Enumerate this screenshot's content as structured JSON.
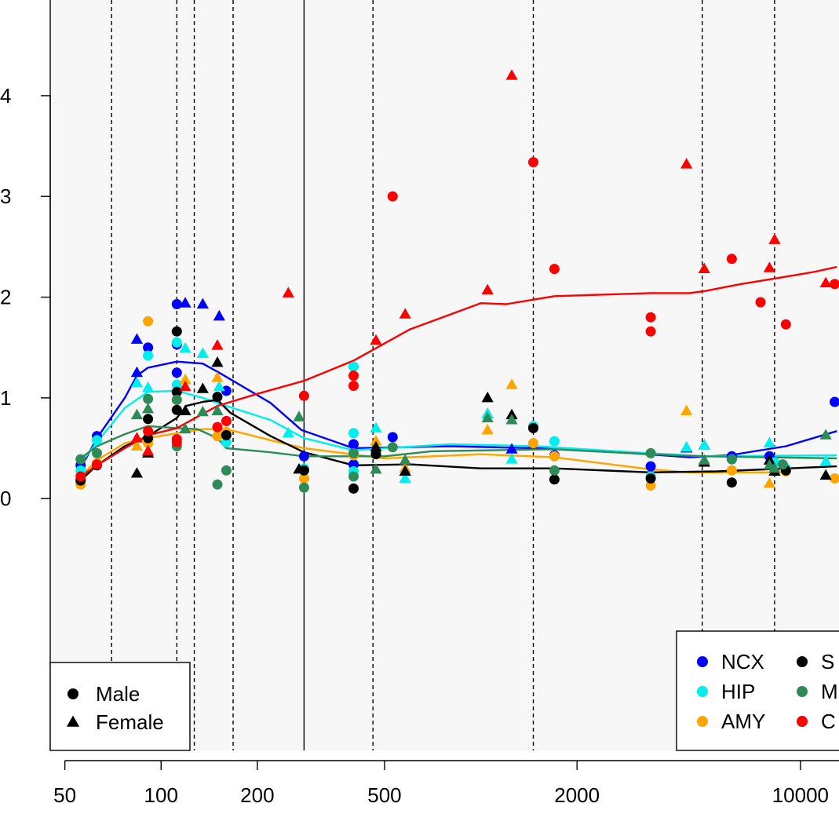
{
  "chart_data": {
    "type": "scatter",
    "x_scale": "log",
    "x_ticks": [
      50,
      100,
      200,
      500,
      2000,
      10000
    ],
    "x_tick_labels": [
      "50",
      "100",
      "200",
      "500",
      "2000",
      "10000"
    ],
    "y_ticks": [
      0,
      1,
      2,
      3,
      4
    ],
    "y_tick_labels": [
      "0",
      "1",
      "2",
      "3",
      "4"
    ],
    "xlim": [
      45,
      13200
    ],
    "ylim": [
      -2.5,
      4.95
    ],
    "grid": false,
    "legend_sex_location": "bottom-left",
    "legend_region_location": "bottom-right",
    "shape_legend": [
      {
        "label": "Male",
        "shape": "circle"
      },
      {
        "label": "Female",
        "shape": "triangle"
      }
    ],
    "region_legend": [
      {
        "label": "NCX",
        "color": "#0000ff"
      },
      {
        "label": "S",
        "color": "#000000"
      },
      {
        "label": "HIP",
        "color": "#00eeee"
      },
      {
        "label": "M",
        "color": "#2e8b57"
      },
      {
        "label": "AMY",
        "color": "#ffa500"
      },
      {
        "label": "C",
        "color": "#ff0000"
      }
    ],
    "vlines_dashed": [
      70,
      112,
      127,
      168,
      460,
      1460,
      4930,
      8300
    ],
    "vline_solid": 280,
    "series": [
      {
        "color": "#0000ff",
        "fit": [
          [
            56,
            0.3
          ],
          [
            63,
            0.6
          ],
          [
            77,
            1.0
          ],
          [
            84,
            1.22
          ],
          [
            91,
            1.3
          ],
          [
            112,
            1.36
          ],
          [
            135,
            1.34
          ],
          [
            152,
            1.25
          ],
          [
            220,
            0.95
          ],
          [
            275,
            0.68
          ],
          [
            400,
            0.5
          ],
          [
            800,
            0.52
          ],
          [
            1500,
            0.5
          ],
          [
            3000,
            0.45
          ],
          [
            4500,
            0.41
          ],
          [
            6000,
            0.43
          ],
          [
            9000,
            0.52
          ],
          [
            13000,
            0.67
          ]
        ],
        "male": [
          [
            56,
            0.33
          ],
          [
            63,
            0.62
          ],
          [
            91,
            1.5
          ],
          [
            112,
            1.25
          ],
          [
            112,
            1.93
          ],
          [
            112,
            1.53
          ],
          [
            160,
            1.07
          ],
          [
            280,
            0.42
          ],
          [
            400,
            0.54
          ],
          [
            400,
            0.34
          ],
          [
            530,
            0.61
          ],
          [
            1700,
            0.43
          ],
          [
            3400,
            0.32
          ],
          [
            6100,
            0.42
          ],
          [
            8000,
            0.42
          ],
          [
            12800,
            0.96
          ]
        ],
        "female": [
          [
            84,
            1.58
          ],
          [
            84,
            1.25
          ],
          [
            119,
            1.94
          ],
          [
            135,
            1.93
          ],
          [
            152,
            1.81
          ],
          [
            1050,
            0.84
          ],
          [
            1250,
            0.49
          ],
          [
            4400,
            0.5
          ],
          [
            5000,
            0.53
          ]
        ]
      },
      {
        "color": "#00eeee",
        "fit": [
          [
            56,
            0.35
          ],
          [
            63,
            0.56
          ],
          [
            77,
            0.9
          ],
          [
            91,
            1.06
          ],
          [
            112,
            1.07
          ],
          [
            135,
            1.0
          ],
          [
            160,
            0.92
          ],
          [
            220,
            0.78
          ],
          [
            280,
            0.6
          ],
          [
            400,
            0.48
          ],
          [
            800,
            0.54
          ],
          [
            1500,
            0.52
          ],
          [
            3000,
            0.46
          ],
          [
            5000,
            0.42
          ],
          [
            13000,
            0.43
          ]
        ],
        "male": [
          [
            56,
            0.28
          ],
          [
            63,
            0.58
          ],
          [
            91,
            1.42
          ],
          [
            112,
            1.13
          ],
          [
            112,
            1.55
          ],
          [
            160,
            0.56
          ],
          [
            280,
            0.3
          ],
          [
            400,
            1.31
          ],
          [
            400,
            0.65
          ],
          [
            400,
            0.27
          ],
          [
            1460,
            0.72
          ],
          [
            1700,
            0.57
          ],
          [
            3400,
            0.22
          ],
          [
            6100,
            0.39
          ],
          [
            8300,
            0.36
          ],
          [
            9000,
            0.3
          ]
        ],
        "female": [
          [
            84,
            1.15
          ],
          [
            91,
            1.1
          ],
          [
            119,
            1.49
          ],
          [
            135,
            1.44
          ],
          [
            152,
            1.11
          ],
          [
            250,
            0.65
          ],
          [
            470,
            0.7
          ],
          [
            580,
            0.2
          ],
          [
            1050,
            0.84
          ],
          [
            1250,
            0.39
          ],
          [
            4400,
            0.51
          ],
          [
            5000,
            0.53
          ],
          [
            8000,
            0.55
          ],
          [
            12000,
            0.37
          ]
        ]
      },
      {
        "color": "#ffa500",
        "fit": [
          [
            56,
            0.22
          ],
          [
            63,
            0.38
          ],
          [
            77,
            0.55
          ],
          [
            91,
            0.6
          ],
          [
            112,
            0.65
          ],
          [
            135,
            0.69
          ],
          [
            160,
            0.69
          ],
          [
            220,
            0.58
          ],
          [
            280,
            0.5
          ],
          [
            500,
            0.4
          ],
          [
            1000,
            0.44
          ],
          [
            1700,
            0.41
          ],
          [
            3400,
            0.29
          ],
          [
            4500,
            0.26
          ],
          [
            9000,
            0.26
          ]
        ],
        "male": [
          [
            56,
            0.14
          ],
          [
            63,
            0.35
          ],
          [
            91,
            1.76
          ],
          [
            91,
            0.55
          ],
          [
            112,
            0.88
          ],
          [
            150,
            0.62
          ],
          [
            160,
            0.66
          ],
          [
            280,
            0.2
          ],
          [
            400,
            0.43
          ],
          [
            1460,
            0.55
          ],
          [
            1700,
            0.42
          ],
          [
            3400,
            0.13
          ],
          [
            6100,
            0.28
          ],
          [
            9000,
            0.27
          ],
          [
            12800,
            0.2
          ]
        ],
        "female": [
          [
            84,
            0.52
          ],
          [
            91,
            0.62
          ],
          [
            119,
            1.18
          ],
          [
            150,
            1.2
          ],
          [
            150,
            0.65
          ],
          [
            470,
            0.57
          ],
          [
            580,
            0.3
          ],
          [
            1050,
            0.68
          ],
          [
            1250,
            1.13
          ],
          [
            4400,
            0.87
          ],
          [
            8000,
            0.15
          ]
        ]
      },
      {
        "color": "#000000",
        "fit": [
          [
            56,
            0.18
          ],
          [
            63,
            0.33
          ],
          [
            77,
            0.52
          ],
          [
            91,
            0.62
          ],
          [
            112,
            0.8
          ],
          [
            120,
            0.92
          ],
          [
            135,
            0.96
          ],
          [
            150,
            0.98
          ],
          [
            165,
            0.85
          ],
          [
            220,
            0.62
          ],
          [
            280,
            0.46
          ],
          [
            400,
            0.33
          ],
          [
            600,
            0.34
          ],
          [
            1000,
            0.3
          ],
          [
            1700,
            0.3
          ],
          [
            3400,
            0.26
          ],
          [
            5500,
            0.27
          ],
          [
            13000,
            0.32
          ]
        ],
        "male": [
          [
            56,
            0.18
          ],
          [
            63,
            0.33
          ],
          [
            91,
            0.79
          ],
          [
            91,
            0.6
          ],
          [
            112,
            1.66
          ],
          [
            112,
            1.06
          ],
          [
            112,
            0.88
          ],
          [
            150,
            1.01
          ],
          [
            160,
            0.63
          ],
          [
            280,
            0.28
          ],
          [
            400,
            0.1
          ],
          [
            470,
            0.44
          ],
          [
            1460,
            0.7
          ],
          [
            1700,
            0.19
          ],
          [
            3400,
            0.2
          ],
          [
            6100,
            0.16
          ],
          [
            9000,
            0.28
          ]
        ],
        "female": [
          [
            84,
            0.25
          ],
          [
            91,
            0.45
          ],
          [
            119,
            0.87
          ],
          [
            135,
            1.09
          ],
          [
            150,
            1.35
          ],
          [
            270,
            0.29
          ],
          [
            470,
            0.51
          ],
          [
            580,
            0.27
          ],
          [
            1050,
            1.0
          ],
          [
            1250,
            0.83
          ],
          [
            5000,
            0.36
          ],
          [
            8000,
            0.38
          ],
          [
            8300,
            0.27
          ],
          [
            12000,
            0.23
          ]
        ]
      },
      {
        "color": "#2e8b57",
        "fit": [
          [
            56,
            0.4
          ],
          [
            63,
            0.52
          ],
          [
            77,
            0.64
          ],
          [
            91,
            0.72
          ],
          [
            112,
            0.7
          ],
          [
            130,
            0.69
          ],
          [
            150,
            0.6
          ],
          [
            160,
            0.5
          ],
          [
            220,
            0.46
          ],
          [
            280,
            0.42
          ],
          [
            500,
            0.42
          ],
          [
            700,
            0.47
          ],
          [
            1700,
            0.49
          ],
          [
            3400,
            0.44
          ],
          [
            5000,
            0.42
          ],
          [
            13000,
            0.4
          ]
        ],
        "male": [
          [
            56,
            0.39
          ],
          [
            63,
            0.45
          ],
          [
            91,
            0.99
          ],
          [
            112,
            0.98
          ],
          [
            112,
            0.52
          ],
          [
            150,
            0.14
          ],
          [
            160,
            0.28
          ],
          [
            280,
            0.11
          ],
          [
            400,
            0.22
          ],
          [
            400,
            0.45
          ],
          [
            530,
            0.51
          ],
          [
            1700,
            0.28
          ],
          [
            3400,
            0.45
          ],
          [
            6100,
            0.39
          ],
          [
            8800,
            0.34
          ]
        ],
        "female": [
          [
            84,
            0.83
          ],
          [
            91,
            0.89
          ],
          [
            119,
            0.69
          ],
          [
            135,
            0.86
          ],
          [
            150,
            0.87
          ],
          [
            270,
            0.81
          ],
          [
            470,
            0.29
          ],
          [
            580,
            0.38
          ],
          [
            1050,
            0.8
          ],
          [
            1250,
            0.78
          ],
          [
            5000,
            0.38
          ],
          [
            8000,
            0.33
          ],
          [
            8300,
            0.3
          ],
          [
            12000,
            0.63
          ]
        ]
      },
      {
        "color": "#ff0000",
        "fit": [
          [
            56,
            0.22
          ],
          [
            63,
            0.33
          ],
          [
            77,
            0.5
          ],
          [
            91,
            0.63
          ],
          [
            112,
            0.7
          ],
          [
            150,
            0.92
          ],
          [
            200,
            1.04
          ],
          [
            280,
            1.17
          ],
          [
            400,
            1.37
          ],
          [
            600,
            1.68
          ],
          [
            1000,
            1.94
          ],
          [
            1200,
            1.93
          ],
          [
            1700,
            2.01
          ],
          [
            3400,
            2.04
          ],
          [
            4500,
            2.04
          ],
          [
            5000,
            2.06
          ],
          [
            6500,
            2.13
          ],
          [
            8500,
            2.19
          ],
          [
            11000,
            2.25
          ],
          [
            13000,
            2.3
          ]
        ],
        "male": [
          [
            56,
            0.22
          ],
          [
            63,
            0.34
          ],
          [
            91,
            0.67
          ],
          [
            112,
            0.56
          ],
          [
            112,
            0.59
          ],
          [
            150,
            0.71
          ],
          [
            160,
            0.77
          ],
          [
            280,
            1.02
          ],
          [
            400,
            1.22
          ],
          [
            400,
            1.12
          ],
          [
            530,
            3.0
          ],
          [
            1460,
            3.34
          ],
          [
            1700,
            2.28
          ],
          [
            3400,
            1.8
          ],
          [
            3400,
            1.66
          ],
          [
            6100,
            2.38
          ],
          [
            7500,
            1.95
          ],
          [
            9000,
            1.73
          ],
          [
            12800,
            2.13
          ]
        ],
        "female": [
          [
            84,
            0.6
          ],
          [
            91,
            0.47
          ],
          [
            119,
            1.11
          ],
          [
            150,
            1.52
          ],
          [
            250,
            2.04
          ],
          [
            470,
            1.57
          ],
          [
            580,
            1.83
          ],
          [
            1050,
            2.07
          ],
          [
            1250,
            4.2
          ],
          [
            4400,
            3.32
          ],
          [
            5000,
            2.28
          ],
          [
            8000,
            2.29
          ],
          [
            8300,
            2.57
          ],
          [
            12000,
            2.14
          ]
        ]
      }
    ]
  }
}
